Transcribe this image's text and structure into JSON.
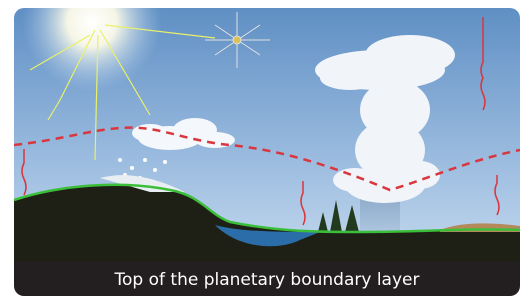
{
  "caption": "Top of the planetary boundary layer"
}
